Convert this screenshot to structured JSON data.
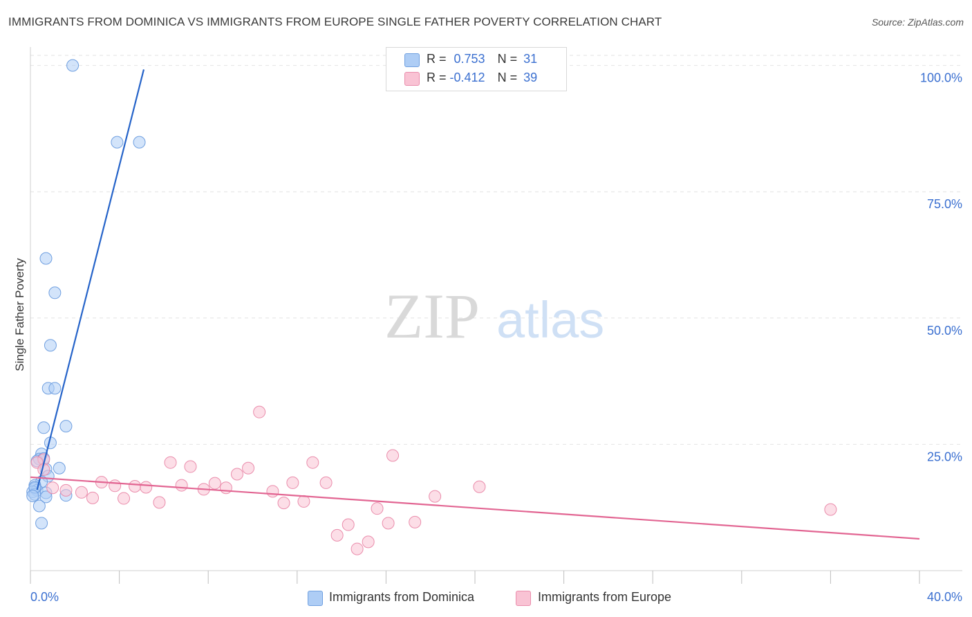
{
  "header": {
    "title": "IMMIGRANTS FROM DOMINICA VS IMMIGRANTS FROM EUROPE SINGLE FATHER POVERTY CORRELATION CHART",
    "source": "Source: ZipAtlas.com"
  },
  "watermark": {
    "zip": "ZIP",
    "atlas": "atlas"
  },
  "legend": {
    "row1": {
      "r_label": "R = ",
      "r_value": "0.753",
      "n_label": "N = ",
      "n_value": "31"
    },
    "row2": {
      "r_label": "R = ",
      "r_value": "-0.412",
      "n_label": "N = ",
      "n_value": "39"
    }
  },
  "colors": {
    "blue_fill": "#aecdf5",
    "blue_stroke": "#6f9fe0",
    "blue_line": "#2563c9",
    "pink_fill": "#f9c3d4",
    "pink_stroke": "#ea8cab",
    "pink_line": "#e26592",
    "axis_text": "#3a6fd0",
    "grid": "#e2e2e2"
  },
  "chart_data": {
    "type": "scatter",
    "title": "IMMIGRANTS FROM DOMINICA VS IMMIGRANTS FROM EUROPE SINGLE FATHER POVERTY CORRELATION CHART",
    "xlabel": "",
    "ylabel": "Single Father Poverty",
    "xlim": [
      0,
      40
    ],
    "ylim": [
      0,
      102
    ],
    "x_tick_labels": [
      "0.0%",
      "40.0%"
    ],
    "y_tick_labels": [
      "100.0%",
      "75.0%",
      "50.0%",
      "25.0%"
    ],
    "y_ticks": [
      100,
      75,
      50,
      25
    ],
    "series": [
      {
        "name": "Immigrants from Dominica",
        "r": 0.753,
        "n": 31,
        "points": [
          [
            1.9,
            100.0
          ],
          [
            3.9,
            84.8
          ],
          [
            4.9,
            84.8
          ],
          [
            0.7,
            61.8
          ],
          [
            1.1,
            55.0
          ],
          [
            0.9,
            44.6
          ],
          [
            0.8,
            36.1
          ],
          [
            1.1,
            36.1
          ],
          [
            1.6,
            28.6
          ],
          [
            0.6,
            28.3
          ],
          [
            0.9,
            25.3
          ],
          [
            0.5,
            23.1
          ],
          [
            0.4,
            22.1
          ],
          [
            0.3,
            21.7
          ],
          [
            0.7,
            20.1
          ],
          [
            1.3,
            20.3
          ],
          [
            0.8,
            18.7
          ],
          [
            0.5,
            17.6
          ],
          [
            0.2,
            16.9
          ],
          [
            0.2,
            16.3
          ],
          [
            0.3,
            15.9
          ],
          [
            0.1,
            15.6
          ],
          [
            0.7,
            15.4
          ],
          [
            0.2,
            15.1
          ],
          [
            0.7,
            14.6
          ],
          [
            1.6,
            14.9
          ],
          [
            0.4,
            12.8
          ],
          [
            0.5,
            9.4
          ],
          [
            0.2,
            16.5
          ],
          [
            0.6,
            22.2
          ],
          [
            0.1,
            14.8
          ]
        ],
        "trend": {
          "x0": 0.3,
          "y0": 16.0,
          "x1": 5.1,
          "y1": 99.2
        }
      },
      {
        "name": "Immigrants from Europe",
        "r": -0.412,
        "n": 39,
        "points": [
          [
            0.6,
            22.0
          ],
          [
            0.3,
            21.4
          ],
          [
            0.6,
            20.0
          ],
          [
            1.0,
            16.4
          ],
          [
            1.6,
            15.9
          ],
          [
            2.3,
            15.5
          ],
          [
            2.8,
            14.4
          ],
          [
            3.2,
            17.5
          ],
          [
            3.8,
            16.8
          ],
          [
            4.2,
            14.3
          ],
          [
            4.7,
            16.7
          ],
          [
            5.2,
            16.5
          ],
          [
            5.8,
            13.5
          ],
          [
            6.3,
            21.4
          ],
          [
            6.8,
            16.9
          ],
          [
            7.2,
            20.6
          ],
          [
            7.8,
            16.1
          ],
          [
            8.3,
            17.3
          ],
          [
            8.8,
            16.4
          ],
          [
            9.3,
            19.1
          ],
          [
            9.8,
            20.3
          ],
          [
            10.3,
            31.4
          ],
          [
            10.9,
            15.7
          ],
          [
            11.4,
            13.4
          ],
          [
            11.8,
            17.4
          ],
          [
            12.3,
            13.7
          ],
          [
            12.7,
            21.4
          ],
          [
            13.3,
            17.4
          ],
          [
            13.8,
            7.0
          ],
          [
            14.3,
            9.1
          ],
          [
            14.7,
            4.3
          ],
          [
            15.2,
            5.7
          ],
          [
            15.6,
            12.3
          ],
          [
            16.1,
            9.4
          ],
          [
            16.3,
            22.8
          ],
          [
            17.3,
            9.6
          ],
          [
            18.2,
            14.7
          ],
          [
            20.2,
            16.6
          ],
          [
            36.0,
            12.1
          ]
        ],
        "trend": {
          "x0": 0.0,
          "y0": 18.5,
          "x1": 40.0,
          "y1": 6.3
        }
      }
    ]
  },
  "bottom_legend": {
    "item1": "Immigrants from Dominica",
    "item2": "Immigrants from Europe"
  }
}
